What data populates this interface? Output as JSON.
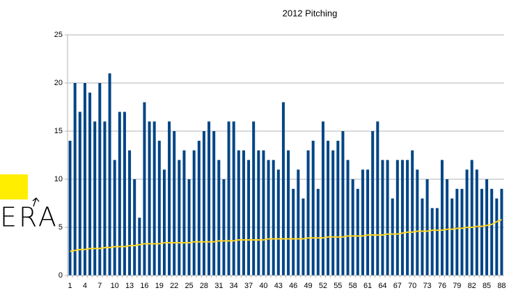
{
  "chart_data": {
    "type": "bar",
    "title": "2012 Pitching",
    "annotation": "ERA",
    "categories": [
      1,
      null,
      null,
      4,
      null,
      null,
      7,
      null,
      null,
      10,
      null,
      null,
      13,
      null,
      null,
      16,
      null,
      null,
      19,
      null,
      null,
      22,
      null,
      null,
      25,
      null,
      null,
      28,
      null,
      null,
      31,
      null,
      null,
      34,
      null,
      null,
      37,
      null,
      null,
      40,
      null,
      null,
      43,
      null,
      null,
      46,
      null,
      null,
      49,
      null,
      null,
      52,
      null,
      null,
      55,
      null,
      null,
      58,
      null,
      null,
      61,
      null,
      null,
      64,
      null,
      null,
      67,
      null,
      null,
      70,
      null,
      null,
      73,
      null,
      null,
      76,
      null,
      null,
      79,
      null,
      null,
      82,
      null,
      null,
      85,
      null,
      null,
      88
    ],
    "series": [
      {
        "type": "bar",
        "color": "#004586",
        "values": [
          14,
          20,
          17,
          20,
          19,
          16,
          20,
          16,
          21,
          12,
          17,
          17,
          13,
          10,
          6,
          18,
          16,
          16,
          14,
          11,
          16,
          15,
          12,
          13,
          10,
          13,
          14,
          15,
          16,
          15,
          12,
          10,
          16,
          16,
          13,
          13,
          12,
          16,
          13,
          13,
          12,
          12,
          11,
          18,
          13,
          9,
          11,
          8,
          13,
          14,
          9,
          16,
          14,
          13,
          14,
          15,
          12,
          10,
          9,
          11,
          11,
          15,
          16,
          12,
          12,
          8,
          12,
          12,
          12,
          13,
          11,
          8,
          10,
          7,
          7,
          12,
          10,
          8,
          9,
          9,
          11,
          12,
          11,
          9,
          10,
          9,
          8,
          9
        ]
      },
      {
        "type": "line",
        "color": "#ffd320",
        "values": [
          2.5,
          2.6,
          2.7,
          2.7,
          2.8,
          2.8,
          2.8,
          2.9,
          2.9,
          3.0,
          3.0,
          3.0,
          3.1,
          3.1,
          3.2,
          3.3,
          3.3,
          3.3,
          3.3,
          3.4,
          3.4,
          3.4,
          3.4,
          3.4,
          3.4,
          3.5,
          3.5,
          3.5,
          3.5,
          3.5,
          3.6,
          3.6,
          3.6,
          3.6,
          3.7,
          3.7,
          3.7,
          3.7,
          3.7,
          3.7,
          3.8,
          3.8,
          3.8,
          3.8,
          3.8,
          3.8,
          3.8,
          3.8,
          3.9,
          3.9,
          3.9,
          3.9,
          4.0,
          4.0,
          4.0,
          4.0,
          4.1,
          4.1,
          4.1,
          4.1,
          4.2,
          4.2,
          4.2,
          4.2,
          4.3,
          4.3,
          4.3,
          4.4,
          4.5,
          4.5,
          4.6,
          4.6,
          4.6,
          4.7,
          4.7,
          4.7,
          4.8,
          4.8,
          4.9,
          4.9,
          5.0,
          5.0,
          5.1,
          5.1,
          5.2,
          5.3,
          5.6,
          5.8
        ]
      }
    ],
    "ylim": [
      0,
      25
    ],
    "yticks": [
      0,
      5,
      10,
      15,
      20,
      25
    ],
    "grid": true
  }
}
